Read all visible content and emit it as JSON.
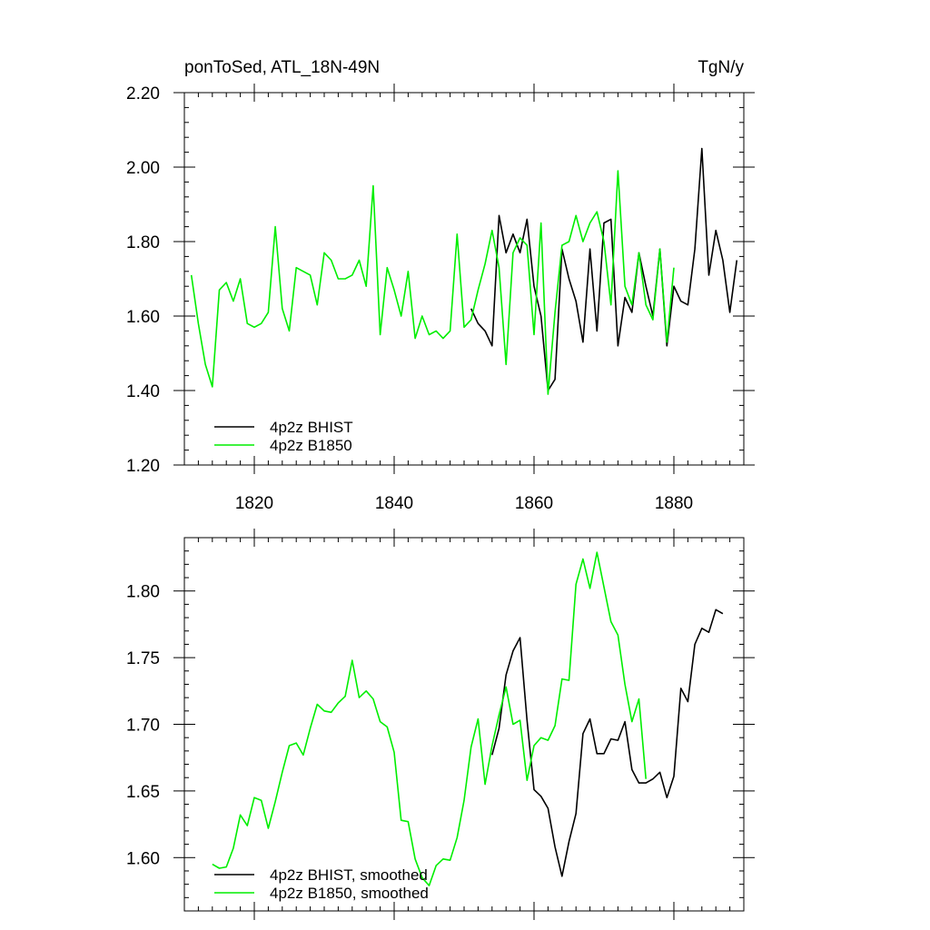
{
  "chart_data": [
    {
      "type": "line",
      "title_left": "ponToSed, ATL_18N-49N",
      "title_right": "TgN/y",
      "xlabel": "",
      "ylabel": "",
      "xlim": [
        1810,
        1890
      ],
      "ylim": [
        1.2,
        2.2
      ],
      "y_ticks": [
        1.2,
        1.4,
        1.6,
        1.8,
        2.0,
        2.2
      ],
      "y_tick_labels": [
        "1.20",
        "1.40",
        "1.60",
        "1.80",
        "2.00",
        "2.20"
      ],
      "x_ticks": [
        1820,
        1840,
        1860,
        1880
      ],
      "x_tick_labels": [
        "1820",
        "1840",
        "1860",
        "1880"
      ],
      "grid": false,
      "legend_position": "bottom-left",
      "series": [
        {
          "name": "4p2z BHIST",
          "color": "#000000",
          "x": [
            1851,
            1852,
            1853,
            1854,
            1855,
            1856,
            1857,
            1858,
            1859,
            1860,
            1861,
            1862,
            1863,
            1864,
            1865,
            1866,
            1867,
            1868,
            1869,
            1870,
            1871,
            1872,
            1873,
            1874,
            1875,
            1876,
            1877,
            1878,
            1879,
            1880,
            1881,
            1882,
            1883,
            1884,
            1885,
            1886,
            1887,
            1888,
            1889
          ],
          "values": [
            1.62,
            1.58,
            1.56,
            1.52,
            1.87,
            1.77,
            1.82,
            1.77,
            1.86,
            1.68,
            1.6,
            1.4,
            1.43,
            1.78,
            1.7,
            1.64,
            1.53,
            1.78,
            1.56,
            1.85,
            1.86,
            1.52,
            1.65,
            1.61,
            1.77,
            1.68,
            1.6,
            1.78,
            1.52,
            1.68,
            1.64,
            1.63,
            1.78,
            2.05,
            1.71,
            1.83,
            1.75,
            1.61,
            1.75
          ]
        },
        {
          "name": "4p2z B1850",
          "color": "#00ee00",
          "x": [
            1811,
            1812,
            1813,
            1814,
            1815,
            1816,
            1817,
            1818,
            1819,
            1820,
            1821,
            1822,
            1823,
            1824,
            1825,
            1826,
            1827,
            1828,
            1829,
            1830,
            1831,
            1832,
            1833,
            1834,
            1835,
            1836,
            1837,
            1838,
            1839,
            1840,
            1841,
            1842,
            1843,
            1844,
            1845,
            1846,
            1847,
            1848,
            1849,
            1850,
            1851,
            1852,
            1853,
            1854,
            1855,
            1856,
            1857,
            1858,
            1859,
            1860,
            1861,
            1862,
            1863,
            1864,
            1865,
            1866,
            1867,
            1868,
            1869,
            1870,
            1871,
            1872,
            1873,
            1874,
            1875,
            1876,
            1877,
            1878,
            1879,
            1880
          ],
          "values": [
            1.71,
            1.58,
            1.47,
            1.41,
            1.67,
            1.69,
            1.64,
            1.7,
            1.58,
            1.57,
            1.58,
            1.61,
            1.84,
            1.62,
            1.56,
            1.73,
            1.72,
            1.71,
            1.63,
            1.77,
            1.75,
            1.7,
            1.7,
            1.71,
            1.75,
            1.68,
            1.95,
            1.55,
            1.73,
            1.67,
            1.6,
            1.72,
            1.54,
            1.6,
            1.55,
            1.56,
            1.54,
            1.56,
            1.82,
            1.57,
            1.59,
            1.67,
            1.74,
            1.83,
            1.73,
            1.47,
            1.77,
            1.81,
            1.79,
            1.55,
            1.85,
            1.39,
            1.61,
            1.79,
            1.8,
            1.87,
            1.8,
            1.85,
            1.88,
            1.8,
            1.63,
            1.99,
            1.68,
            1.63,
            1.77,
            1.63,
            1.59,
            1.78,
            1.53,
            1.73
          ]
        }
      ]
    },
    {
      "type": "line",
      "title_left": "",
      "title_right": "",
      "xlabel": "",
      "ylabel": "",
      "xlim": [
        1810,
        1890
      ],
      "ylim": [
        1.56,
        1.84
      ],
      "y_ticks": [
        1.6,
        1.65,
        1.7,
        1.75,
        1.8
      ],
      "y_tick_labels": [
        "1.60",
        "1.65",
        "1.70",
        "1.75",
        "1.80"
      ],
      "x_ticks": [
        1820,
        1840,
        1860,
        1880
      ],
      "x_tick_labels": [
        "",
        "",
        "",
        ""
      ],
      "grid": false,
      "legend_position": "bottom-left",
      "series": [
        {
          "name": "4p2z BHIST, smoothed",
          "color": "#000000",
          "x": [
            1854,
            1855,
            1856,
            1857,
            1858,
            1859,
            1860,
            1861,
            1862,
            1863,
            1864,
            1865,
            1866,
            1867,
            1868,
            1869,
            1870,
            1871,
            1872,
            1873,
            1874,
            1875,
            1876,
            1877,
            1878,
            1879,
            1880,
            1881,
            1882,
            1883,
            1884,
            1885,
            1886,
            1887
          ],
          "values": [
            1.677,
            1.697,
            1.737,
            1.755,
            1.765,
            1.703,
            1.651,
            1.646,
            1.637,
            1.608,
            1.586,
            1.612,
            1.633,
            1.693,
            1.704,
            1.678,
            1.678,
            1.689,
            1.688,
            1.702,
            1.666,
            1.656,
            1.656,
            1.659,
            1.664,
            1.645,
            1.661,
            1.727,
            1.717,
            1.76,
            1.772,
            1.769,
            1.786,
            1.783
          ]
        },
        {
          "name": "4p2z B1850, smoothed",
          "color": "#00ee00",
          "x": [
            1814,
            1815,
            1816,
            1817,
            1818,
            1819,
            1820,
            1821,
            1822,
            1823,
            1824,
            1825,
            1826,
            1827,
            1828,
            1829,
            1830,
            1831,
            1832,
            1833,
            1834,
            1835,
            1836,
            1837,
            1838,
            1839,
            1840,
            1841,
            1842,
            1843,
            1844,
            1845,
            1846,
            1847,
            1848,
            1849,
            1850,
            1851,
            1852,
            1853,
            1854,
            1855,
            1856,
            1857,
            1858,
            1859,
            1860,
            1861,
            1862,
            1863,
            1864,
            1865,
            1866,
            1867,
            1868,
            1869,
            1870,
            1871,
            1872,
            1873,
            1874,
            1875,
            1876
          ],
          "values": [
            1.595,
            1.592,
            1.593,
            1.607,
            1.632,
            1.624,
            1.645,
            1.643,
            1.622,
            1.642,
            1.664,
            1.684,
            1.686,
            1.677,
            1.697,
            1.715,
            1.71,
            1.709,
            1.716,
            1.721,
            1.748,
            1.72,
            1.725,
            1.719,
            1.702,
            1.698,
            1.679,
            1.628,
            1.627,
            1.599,
            1.585,
            1.579,
            1.594,
            1.599,
            1.598,
            1.615,
            1.643,
            1.683,
            1.704,
            1.655,
            1.684,
            1.707,
            1.728,
            1.7,
            1.703,
            1.658,
            1.684,
            1.69,
            1.688,
            1.699,
            1.734,
            1.733,
            1.805,
            1.824,
            1.802,
            1.829,
            1.803,
            1.777,
            1.767,
            1.73,
            1.702,
            1.719,
            1.659
          ]
        }
      ]
    }
  ]
}
